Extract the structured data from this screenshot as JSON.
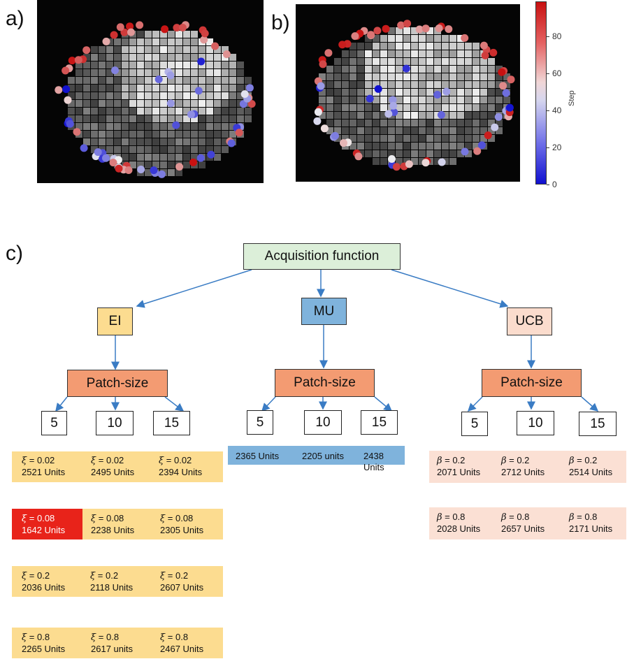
{
  "panels": {
    "a": "a)",
    "b": "b)",
    "c": "c)"
  },
  "colorbar": {
    "title": "Step",
    "ticks": [
      "0",
      "20",
      "40",
      "60",
      "80"
    ],
    "range": [
      0,
      97
    ],
    "colors": {
      "low": "#1010d0",
      "mid": "#f0f0f0",
      "high": "#c81010"
    }
  },
  "tree": {
    "root": "Acquisition function",
    "branches": [
      {
        "label": "EI",
        "child": "Patch-size",
        "sizes": [
          "5",
          "10",
          "15"
        ]
      },
      {
        "label": "MU",
        "child": "Patch-size",
        "sizes": [
          "5",
          "10",
          "15"
        ]
      },
      {
        "label": "UCB",
        "child": "Patch-size",
        "sizes": [
          "5",
          "10",
          "15"
        ]
      }
    ]
  },
  "results": {
    "ei": [
      [
        {
          "sym": "ξ",
          "v": " = 0.02",
          "u": "2521 Units"
        },
        {
          "sym": "ξ",
          "v": " = 0.02",
          "u": "2495 Units"
        },
        {
          "sym": "ξ",
          "v": " = 0.02",
          "u": "2394 Units"
        }
      ],
      [
        {
          "sym": "ξ",
          "v": " = 0.08",
          "u": "1642 Units"
        },
        {
          "sym": "ξ",
          "v": " = 0.08",
          "u": "2238 Units"
        },
        {
          "sym": "ξ",
          "v": " = 0.08",
          "u": "2305 Units"
        }
      ],
      [
        {
          "sym": "ξ",
          "v": " = 0.2",
          "u": "2036 Units"
        },
        {
          "sym": "ξ",
          "v": " = 0.2",
          "u": "2118 Units"
        },
        {
          "sym": "ξ",
          "v": " = 0.2",
          "u": "2607 Units"
        }
      ],
      [
        {
          "sym": "ξ",
          "v": " = 0.8",
          "u": "2265 Units"
        },
        {
          "sym": "ξ",
          "v": " = 0.8",
          "u": "2617 units"
        },
        {
          "sym": "ξ",
          "v": " = 0.8",
          "u": "2467 Units"
        }
      ]
    ],
    "mu": [
      "2365 Units",
      "2205 units",
      "2438 Units"
    ],
    "ucb": [
      [
        {
          "sym": "β",
          "v": " = 0.2",
          "u": "2071 Units"
        },
        {
          "sym": "β",
          "v": " = 0.2",
          "u": "2712 Units"
        },
        {
          "sym": "β",
          "v": " = 0.2",
          "u": "2514 Units"
        }
      ],
      [
        {
          "sym": "β",
          "v": " = 0.8",
          "u": "2028 Units"
        },
        {
          "sym": "β",
          "v": " = 0.8",
          "u": "2657 Units"
        },
        {
          "sym": "β",
          "v": " = 0.8",
          "u": "2171 Units"
        }
      ]
    ]
  },
  "colors": {
    "highlight": "#e8231a",
    "arrow": "#3a7cc4"
  }
}
